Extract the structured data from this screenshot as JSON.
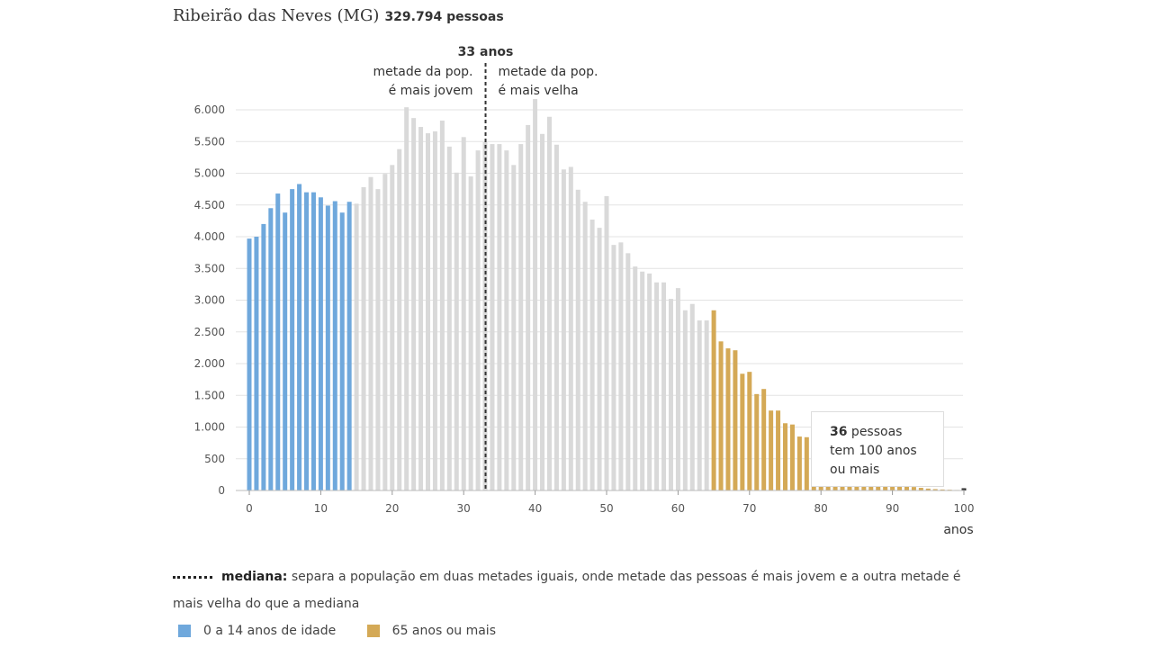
{
  "title": {
    "place": "Ribeirão das Neves (MG)",
    "population": "329.794 pessoas"
  },
  "chart_data": {
    "type": "bar",
    "xlabel": "anos",
    "ylabel": "",
    "ylim": [
      0,
      6000
    ],
    "xlim": [
      0,
      100
    ],
    "grid": true,
    "y_ticks": [
      0,
      500,
      1000,
      1500,
      2000,
      2500,
      3000,
      3500,
      4000,
      4500,
      5000,
      5500,
      6000
    ],
    "y_tick_labels": [
      "0",
      "500",
      "1.000",
      "1.500",
      "2.000",
      "2.500",
      "3.000",
      "3.500",
      "4.000",
      "4.500",
      "5.000",
      "5.500",
      "6.000"
    ],
    "x_ticks": [
      0,
      10,
      20,
      30,
      40,
      50,
      60,
      70,
      80,
      90,
      100
    ],
    "x_tick_labels": [
      "0",
      "10",
      "20",
      "30",
      "40",
      "50",
      "60",
      "70",
      "80",
      "90",
      "100"
    ],
    "ages": [
      0,
      1,
      2,
      3,
      4,
      5,
      6,
      7,
      8,
      9,
      10,
      11,
      12,
      13,
      14,
      15,
      16,
      17,
      18,
      19,
      20,
      21,
      22,
      23,
      24,
      25,
      26,
      27,
      28,
      29,
      30,
      31,
      32,
      33,
      34,
      35,
      36,
      37,
      38,
      39,
      40,
      41,
      42,
      43,
      44,
      45,
      46,
      47,
      48,
      49,
      50,
      51,
      52,
      53,
      54,
      55,
      56,
      57,
      58,
      59,
      60,
      61,
      62,
      63,
      64,
      65,
      66,
      67,
      68,
      69,
      70,
      71,
      72,
      73,
      74,
      75,
      76,
      77,
      78,
      79,
      80,
      81,
      82,
      83,
      84,
      85,
      86,
      87,
      88,
      89,
      90,
      91,
      92,
      93,
      94,
      95,
      96,
      97,
      98,
      99,
      100
    ],
    "values": [
      3970,
      4000,
      4200,
      4450,
      4680,
      4380,
      4750,
      4830,
      4700,
      4700,
      4620,
      4490,
      4560,
      4380,
      4550,
      4520,
      4780,
      4940,
      4750,
      4990,
      5130,
      5380,
      6040,
      5870,
      5730,
      5630,
      5660,
      5830,
      5420,
      5010,
      5570,
      4950,
      5360,
      5490,
      5460,
      5460,
      5360,
      5130,
      5460,
      5760,
      6170,
      5620,
      5890,
      5450,
      5060,
      5100,
      4740,
      4550,
      4270,
      4140,
      4640,
      3870,
      3910,
      3740,
      3530,
      3450,
      3420,
      3280,
      3280,
      3020,
      3190,
      2840,
      2940,
      2680,
      2680,
      2840,
      2350,
      2240,
      2210,
      1840,
      1870,
      1520,
      1600,
      1260,
      1260,
      1060,
      1040,
      850,
      840,
      700,
      650,
      560,
      480,
      420,
      360,
      300,
      260,
      210,
      170,
      140,
      110,
      90,
      70,
      55,
      42,
      30,
      22,
      16,
      12,
      8,
      36
    ],
    "groups": [
      {
        "name": "0 a 14 anos de idade",
        "from": 0,
        "to": 14,
        "color": "#6fa8dc"
      },
      {
        "name": "65 anos ou mais",
        "from": 65,
        "to": 100,
        "color": "#d4a956"
      }
    ],
    "default_color": "#d9d9d9",
    "median": {
      "age": 33,
      "label": "33 anos",
      "left_text": [
        "metade da pop.",
        "é mais jovem"
      ],
      "right_text": [
        "metade da pop.",
        "é mais velha"
      ]
    },
    "callout": {
      "bold": "36",
      "text1": " pessoas",
      "text2": "tem 100 anos",
      "text3": "ou mais"
    }
  },
  "legend": {
    "median_bold": "mediana:",
    "median_text": " separa a população em duas metades iguais, onde metade das pessoas é mais jovem e a outra metade é mais velha do que a mediana",
    "items": [
      "0 a 14 anos de idade",
      "65 anos ou mais"
    ],
    "colors": [
      "#6fa8dc",
      "#d4a956"
    ]
  }
}
